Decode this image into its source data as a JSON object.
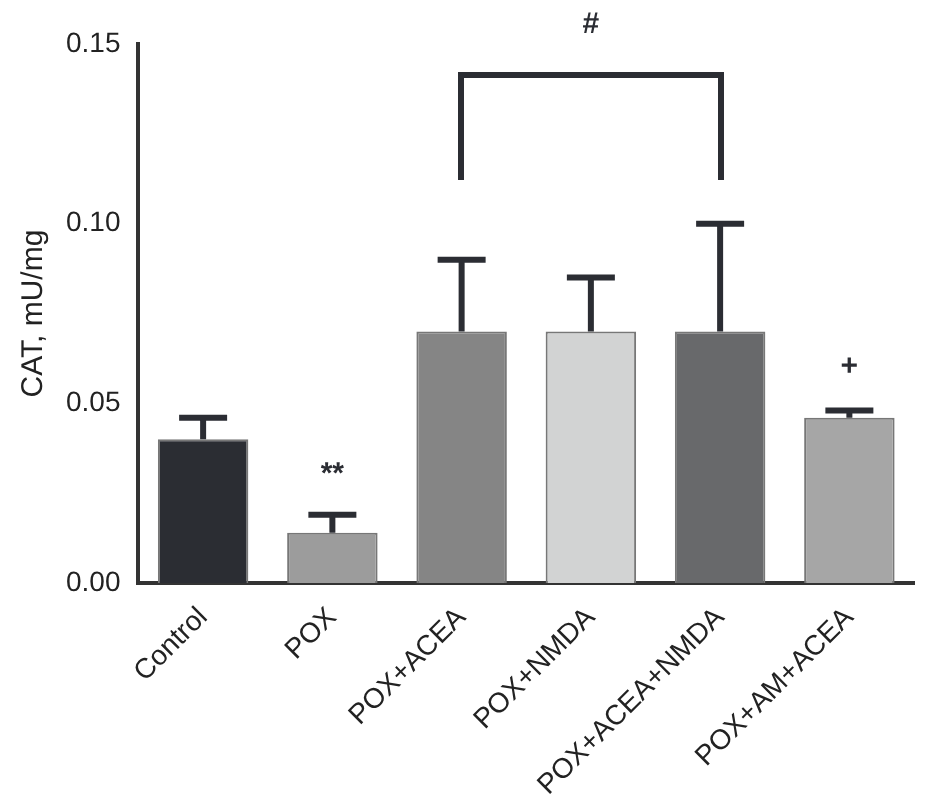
{
  "chart_data": {
    "type": "bar",
    "ylabel": "CAT, mU/mg",
    "categories": [
      "Control",
      "POX",
      "POX+ACEA",
      "POX+NMDA",
      "POX+ACEA+NMDA",
      "POX+AM+ACEA"
    ],
    "values": [
      0.04,
      0.014,
      0.07,
      0.07,
      0.07,
      0.046
    ],
    "colors": [
      "#2b2d33",
      "#9c9c9c",
      "#858585",
      "#d2d3d3",
      "#68696b",
      "#a6a6a6"
    ],
    "errors": [
      [
        0.04,
        0.046
      ],
      [
        0.014,
        0.019
      ],
      [
        0.07,
        0.09
      ],
      [
        0.07,
        0.085
      ],
      [
        0.07,
        0.1
      ],
      [
        0.046,
        0.048
      ]
    ],
    "ylim": [
      0,
      0.15
    ],
    "yticks": [
      {
        "value": 0,
        "label": "0.00"
      },
      {
        "value": 0.05,
        "label": "0.05"
      },
      {
        "value": 0.1,
        "label": "0.10"
      },
      {
        "value": 0.15,
        "label": "0.15"
      }
    ],
    "grid": false,
    "legend": false,
    "annotations": [
      "**",
      "#",
      "+"
    ]
  }
}
